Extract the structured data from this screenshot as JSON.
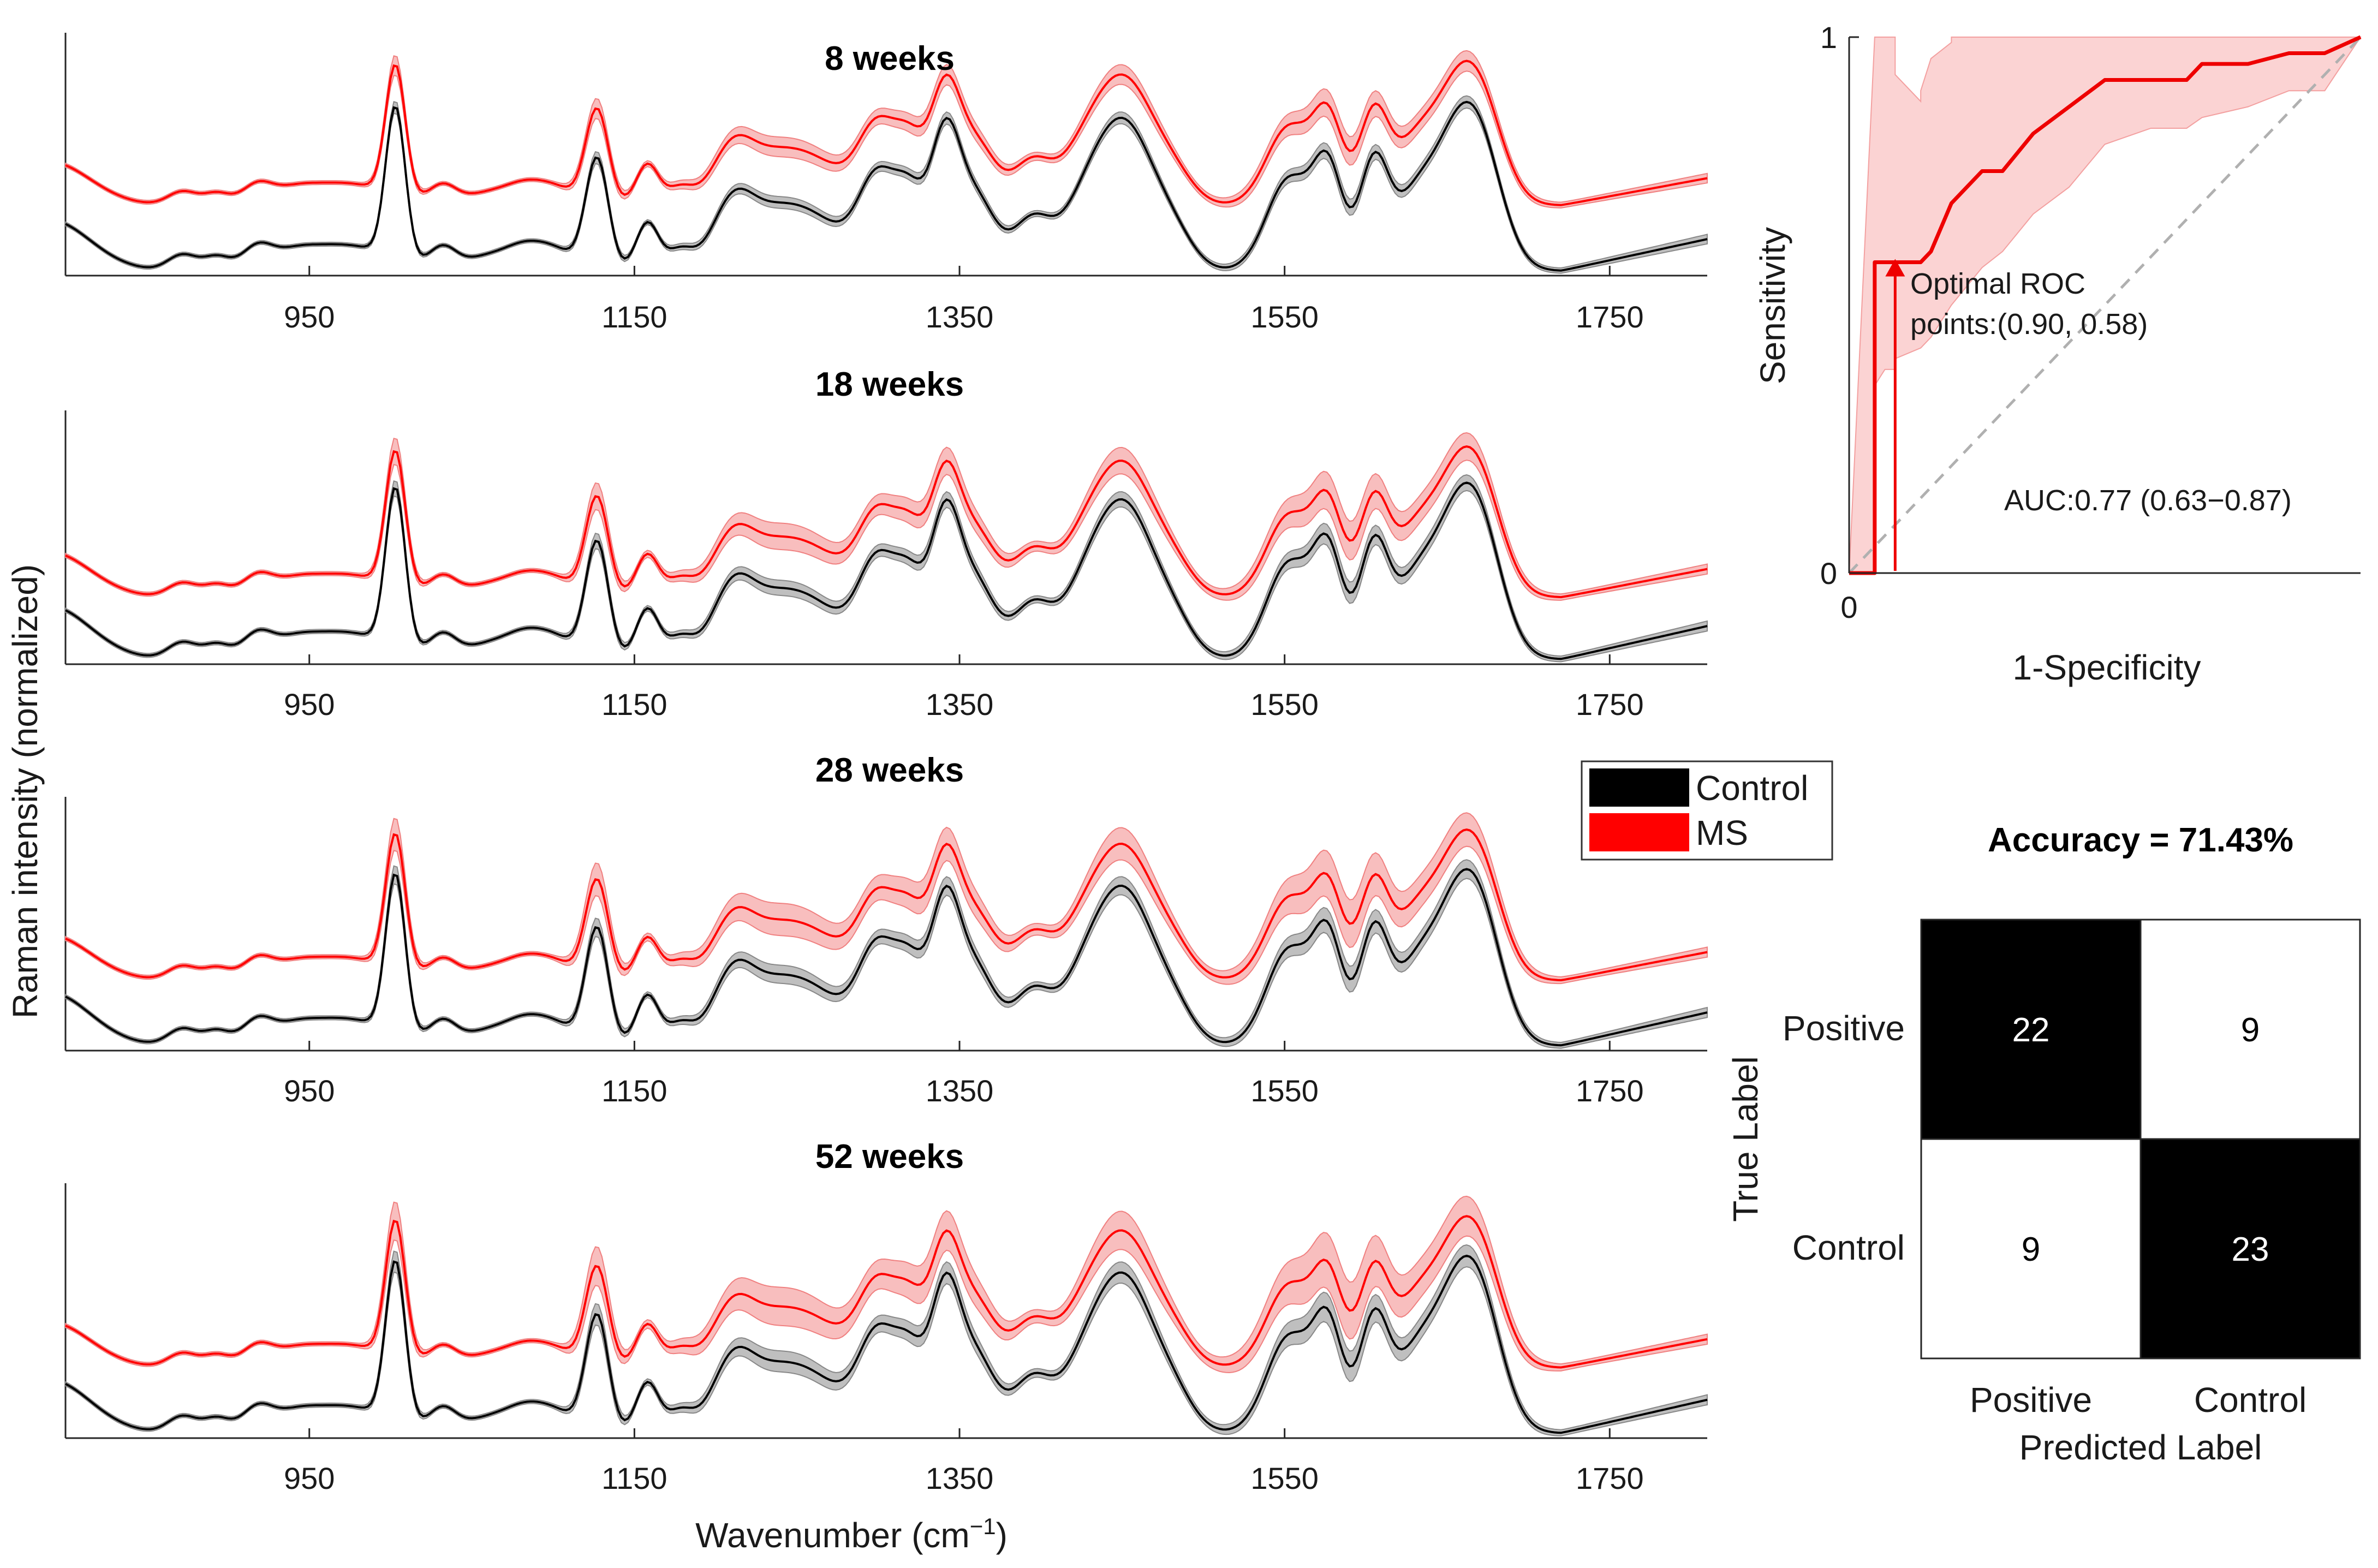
{
  "figure": {
    "ylabel": "Raman intensity (normalized)",
    "xlabel": "Wavenumber (cm",
    "xlabel_sup": "−1",
    "xlabel_end": ")"
  },
  "legend": {
    "placement": "center",
    "entries": [
      {
        "label": "Control",
        "color": "#000000"
      },
      {
        "label": "MS",
        "color": "#ff0000"
      }
    ]
  },
  "chart_data": [
    {
      "type": "line",
      "title": "8 weeks",
      "xlim": [
        800,
        1810
      ],
      "xticks": [
        950,
        1150,
        1350,
        1550,
        1750
      ],
      "series": [
        {
          "name": "Control",
          "color": "#000000",
          "band_color": "#b4b4b4",
          "offset": 0.0,
          "scale": 1.0
        },
        {
          "name": "MS",
          "color": "#ff0000",
          "band_color": "#f7b3b3",
          "offset": 0.42,
          "scale": 0.95
        }
      ]
    },
    {
      "type": "line",
      "title": "18 weeks",
      "xlim": [
        800,
        1810
      ],
      "xticks": [
        950,
        1150,
        1350,
        1550,
        1750
      ],
      "series": [
        {
          "name": "Control",
          "color": "#000000",
          "band_color": "#b4b4b4",
          "offset": 0.0,
          "scale": 1.0
        },
        {
          "name": "MS",
          "color": "#ff0000",
          "band_color": "#f7b3b3",
          "offset": 0.38,
          "scale": 0.95
        }
      ]
    },
    {
      "type": "line",
      "title": "28 weeks",
      "xlim": [
        800,
        1810
      ],
      "xticks": [
        950,
        1150,
        1350,
        1550,
        1750
      ],
      "series": [
        {
          "name": "Control",
          "color": "#000000",
          "band_color": "#b4b4b4",
          "offset": 0.0,
          "scale": 1.0
        },
        {
          "name": "MS",
          "color": "#ff0000",
          "band_color": "#f7b3b3",
          "offset": 0.4,
          "scale": 0.95
        }
      ]
    },
    {
      "type": "line",
      "title": "52 weeks",
      "xlim": [
        800,
        1810
      ],
      "xticks": [
        950,
        1150,
        1350,
        1550,
        1750
      ],
      "series": [
        {
          "name": "Control",
          "color": "#000000",
          "band_color": "#b4b4b4",
          "offset": 0.0,
          "scale": 1.0
        },
        {
          "name": "MS",
          "color": "#ff0000",
          "band_color": "#f7b3b3",
          "offset": 0.4,
          "scale": 0.95
        }
      ]
    },
    {
      "type": "line",
      "xlabel": "1-Specificity",
      "ylabel": "Sensitivity",
      "xlim": [
        0,
        1
      ],
      "ylim": [
        0,
        1
      ],
      "tick_labels": {
        "x0": "0",
        "y0": "0",
        "y1": "1"
      },
      "x": [
        0.0,
        0.0,
        0.0,
        0.05,
        0.05,
        0.05,
        0.07,
        0.09,
        0.09,
        0.14,
        0.14,
        0.16,
        0.2,
        0.2,
        0.26,
        0.3,
        0.36,
        0.43,
        0.5,
        0.59,
        0.66,
        0.69,
        0.78,
        0.86,
        0.93,
        1.0
      ],
      "y": [
        0.0,
        0.0,
        0.0,
        0.0,
        0.35,
        0.58,
        0.58,
        0.58,
        0.58,
        0.58,
        0.58,
        0.6,
        0.69,
        0.69,
        0.75,
        0.75,
        0.82,
        0.87,
        0.92,
        0.92,
        0.92,
        0.95,
        0.95,
        0.97,
        0.97,
        1.0
      ],
      "y_upper": [
        0.0,
        0.0,
        0.0,
        1.0,
        1.0,
        1.0,
        1.0,
        1.0,
        0.93,
        0.88,
        0.9,
        0.96,
        0.99,
        1.0,
        1.0,
        1.0,
        1.0,
        1.0,
        1.0,
        1.0,
        1.0,
        1.0,
        1.0,
        1.0,
        1.0,
        1.0
      ],
      "y_lower": [
        0.0,
        0.0,
        0.0,
        0.0,
        0.0,
        0.35,
        0.38,
        0.38,
        0.4,
        0.42,
        0.42,
        0.44,
        0.5,
        0.5,
        0.57,
        0.6,
        0.67,
        0.72,
        0.8,
        0.83,
        0.83,
        0.85,
        0.87,
        0.9,
        0.9,
        1.0
      ],
      "line_color": "#ee0000",
      "band_color": "#fbd3d3",
      "diagonal_color": "#b0b0b0",
      "optimal_point": {
        "x": 0.09,
        "y": 0.58
      },
      "annotation": [
        "Optimal ROC",
        "points:(0.90, 0.58)"
      ],
      "auc_label": "AUC:0.77 (0.63−0.87)"
    },
    {
      "type": "heatmap",
      "title": "Accuracy = 71.43%",
      "xlabel": "Predicted Label",
      "ylabel": "True Label",
      "x_categories": [
        "Positive",
        "Control"
      ],
      "y_categories": [
        "Positive",
        "Control"
      ],
      "values": [
        [
          22,
          9
        ],
        [
          9,
          23
        ]
      ]
    }
  ]
}
